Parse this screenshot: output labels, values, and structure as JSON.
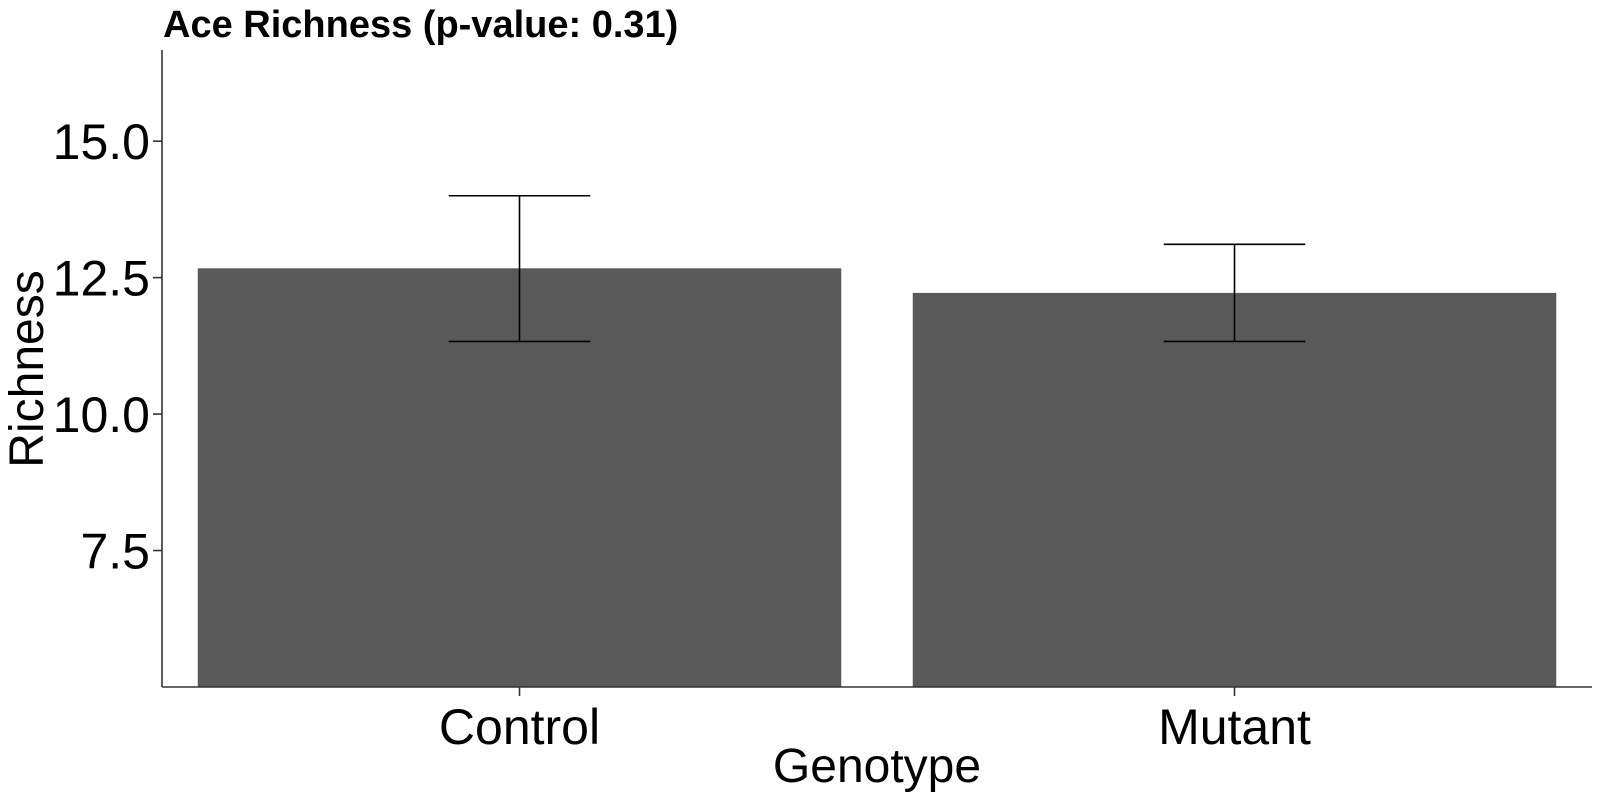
{
  "chart_data": {
    "type": "bar",
    "title": "Ace Richness (p-value: 0.31)",
    "xlabel": "Genotype",
    "ylabel": "Richness",
    "categories": [
      "Control",
      "Mutant"
    ],
    "values": [
      12.67,
      12.22
    ],
    "error_lower": [
      11.33,
      11.33
    ],
    "error_upper": [
      14.0,
      13.11
    ],
    "ylim": [
      5.0,
      16.67
    ],
    "yticks": [
      7.5,
      10.0,
      12.5,
      15.0
    ],
    "ytick_labels": [
      "7.5",
      "10.0",
      "12.5",
      "15.0"
    ],
    "bar_color": "#595959",
    "grid": false,
    "legend": "none"
  }
}
